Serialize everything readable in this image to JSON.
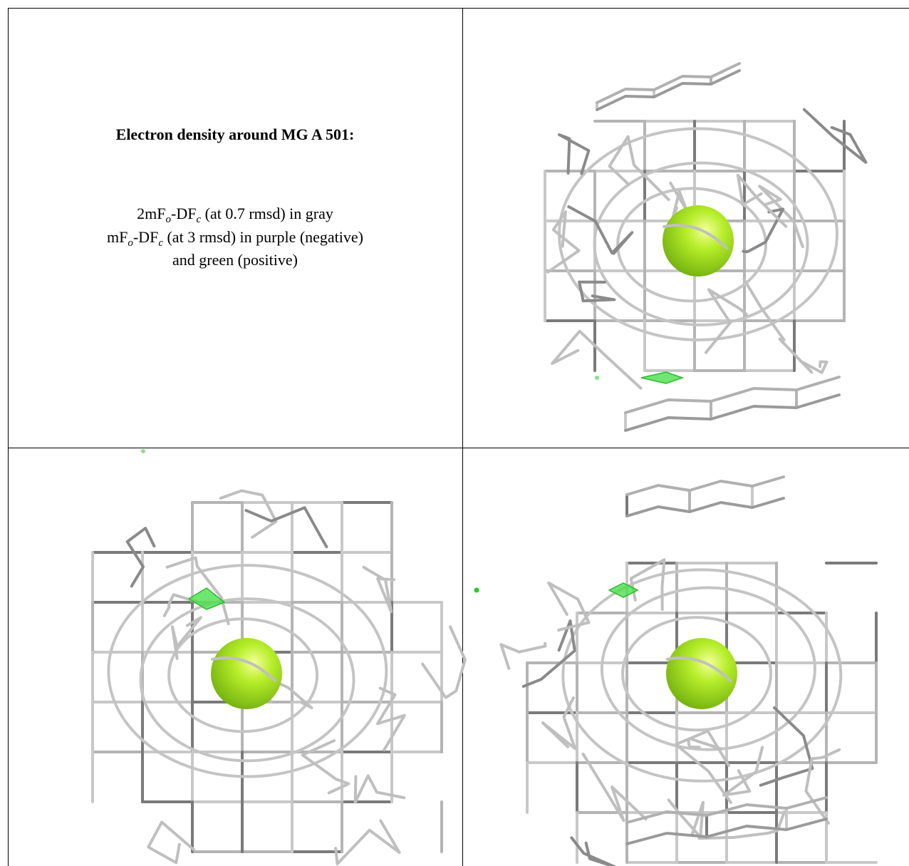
{
  "legend": {
    "title": "Electron density around MG A 501:",
    "lines": [
      [
        "2mF",
        "o",
        "-DF",
        "c",
        " (at 0.7 rmsd) in gray"
      ],
      [
        "mF",
        "o",
        "-DF",
        "c",
        " (at 3 rmsd) in purple (negative)"
      ],
      [
        "and green (positive)"
      ]
    ]
  }
}
